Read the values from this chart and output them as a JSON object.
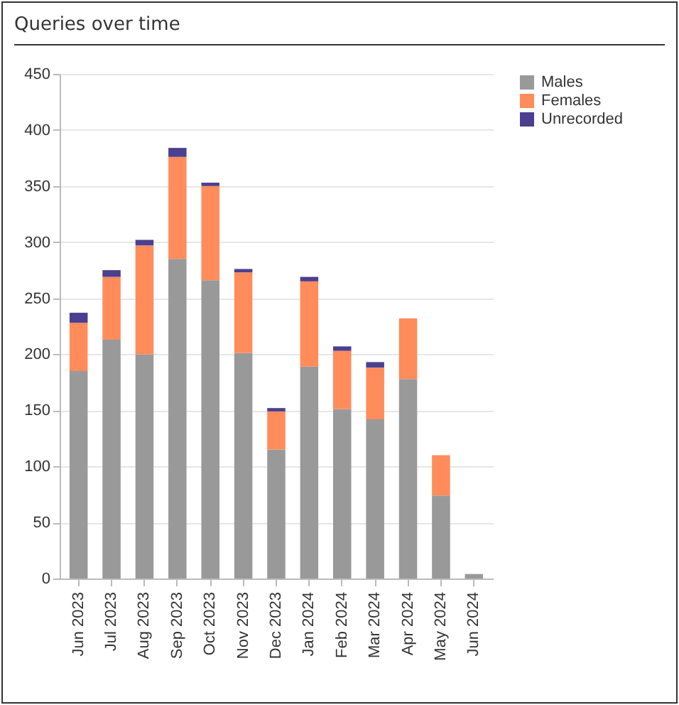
{
  "chart_data": {
    "type": "bar",
    "title": "Queries over time",
    "stacked": true,
    "categories": [
      "Jun 2023",
      "Jul 2023",
      "Aug 2023",
      "Sep 2023",
      "Oct 2023",
      "Nov 2023",
      "Dec 2023",
      "Jan 2024",
      "Feb 2024",
      "Mar 2024",
      "Apr 2024",
      "May 2024",
      "Jun 2024"
    ],
    "series": [
      {
        "name": "Males",
        "color": "#999999",
        "values": [
          185,
          213,
          200,
          285,
          266,
          201,
          115,
          189,
          151,
          142,
          178,
          74,
          4
        ]
      },
      {
        "name": "Females",
        "color": "#ff8c5a",
        "values": [
          43,
          56,
          97,
          91,
          84,
          72,
          34,
          76,
          52,
          46,
          54,
          36,
          0
        ]
      },
      {
        "name": "Unrecorded",
        "color": "#4b3f8f",
        "values": [
          9,
          6,
          5,
          8,
          3,
          3,
          3,
          4,
          4,
          5,
          0,
          0,
          0
        ]
      }
    ],
    "ylim": [
      0,
      450
    ],
    "yticks": [
      0,
      50,
      100,
      150,
      200,
      250,
      300,
      350,
      400,
      450
    ],
    "grid": "y",
    "legend": "right"
  }
}
